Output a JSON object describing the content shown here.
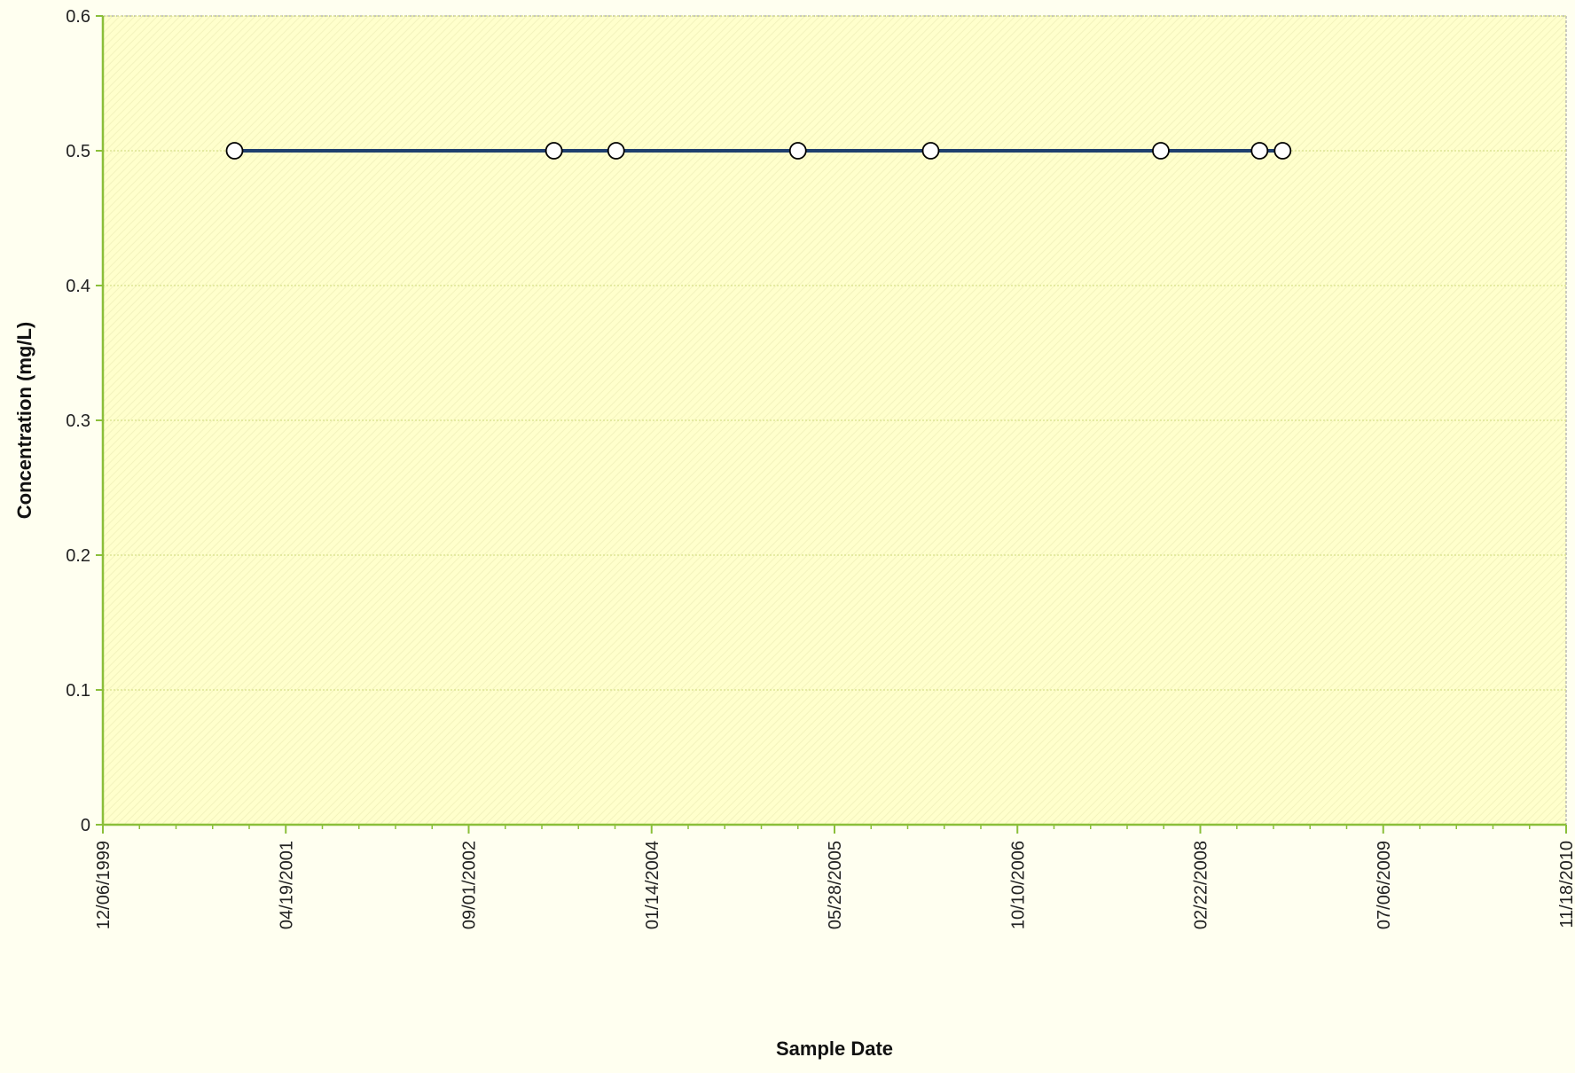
{
  "chart_data": {
    "type": "line",
    "title": "",
    "xlabel": "Sample Date",
    "ylabel": "Concentration (mg/L)",
    "xlim": [
      "12/06/1999",
      "11/18/2010"
    ],
    "ylim": [
      0,
      0.6
    ],
    "x_ticks": [
      "12/06/1999",
      "04/19/2001",
      "09/01/2002",
      "01/14/2004",
      "05/28/2005",
      "10/10/2006",
      "02/22/2008",
      "07/06/2009",
      "11/18/2010"
    ],
    "y_ticks": [
      "0",
      "0.1",
      "0.2",
      "0.3",
      "0.4",
      "0.5",
      "0.6"
    ],
    "grid": "horizontal",
    "series": [
      {
        "x": [
          "11/30/2000",
          "04/22/2003",
          "10/09/2003",
          "02/17/2005",
          "02/15/2006",
          "11/06/2007",
          "08/02/2008",
          "10/04/2008"
        ],
        "values": [
          0.5,
          0.5,
          0.5,
          0.5,
          0.5,
          0.5,
          0.5,
          0.5
        ]
      }
    ],
    "colors": {
      "line": "#1f3f6e",
      "marker_fill": "#ffffff",
      "marker_stroke": "#000000",
      "plot_background": "#ffffcc",
      "gridline": "#d7e08a",
      "axis": "#8bbf3a"
    }
  }
}
